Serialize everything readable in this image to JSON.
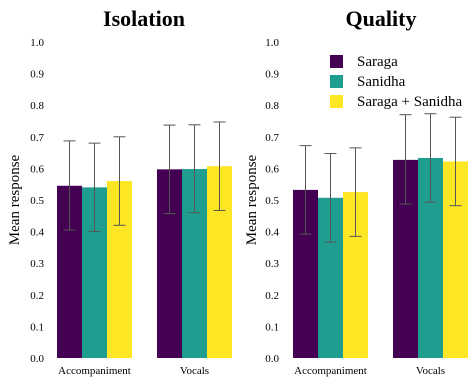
{
  "chart_data": [
    {
      "type": "bar",
      "title": "Isolation",
      "xlabel": "",
      "ylabel": "Mean response",
      "ylim": [
        0,
        1.0
      ],
      "yticks": [
        "0.0",
        "0.1",
        "0.2",
        "0.3",
        "0.4",
        "0.5",
        "0.6",
        "0.7",
        "0.8",
        "0.9",
        "1.0"
      ],
      "categories": [
        "Accompaniment",
        "Vocals"
      ],
      "series": [
        {
          "name": "Saraga",
          "values": [
            0.545,
            0.597
          ],
          "err_low": [
            0.405,
            0.457
          ],
          "err_high": [
            0.687,
            0.737
          ]
        },
        {
          "name": "Sanidha",
          "values": [
            0.54,
            0.598
          ],
          "err_low": [
            0.4,
            0.46
          ],
          "err_high": [
            0.68,
            0.738
          ]
        },
        {
          "name": "Saraga + Sanidha",
          "values": [
            0.56,
            0.607
          ],
          "err_low": [
            0.42,
            0.467
          ],
          "err_high": [
            0.7,
            0.747
          ]
        }
      ]
    },
    {
      "type": "bar",
      "title": "Quality",
      "xlabel": "",
      "ylabel": "Mean response",
      "ylim": [
        0,
        1.0
      ],
      "yticks": [
        "0.0",
        "0.1",
        "0.2",
        "0.3",
        "0.4",
        "0.5",
        "0.6",
        "0.7",
        "0.8",
        "0.9",
        "1.0"
      ],
      "categories": [
        "Accompaniment",
        "Vocals"
      ],
      "legend_position": "top-right",
      "series": [
        {
          "name": "Saraga",
          "values": [
            0.532,
            0.627
          ],
          "err_low": [
            0.392,
            0.487
          ],
          "err_high": [
            0.672,
            0.77
          ]
        },
        {
          "name": "Sanidha",
          "values": [
            0.507,
            0.633
          ],
          "err_low": [
            0.367,
            0.493
          ],
          "err_high": [
            0.647,
            0.773
          ]
        },
        {
          "name": "Saraga + Sanidha",
          "values": [
            0.525,
            0.622
          ],
          "err_low": [
            0.385,
            0.482
          ],
          "err_high": [
            0.665,
            0.762
          ]
        }
      ]
    }
  ],
  "colors": {
    "Saraga": "#440154",
    "Sanidha": "#1f9e8f",
    "Saraga + Sanidha": "#fde725",
    "errorbar": "#555555"
  }
}
